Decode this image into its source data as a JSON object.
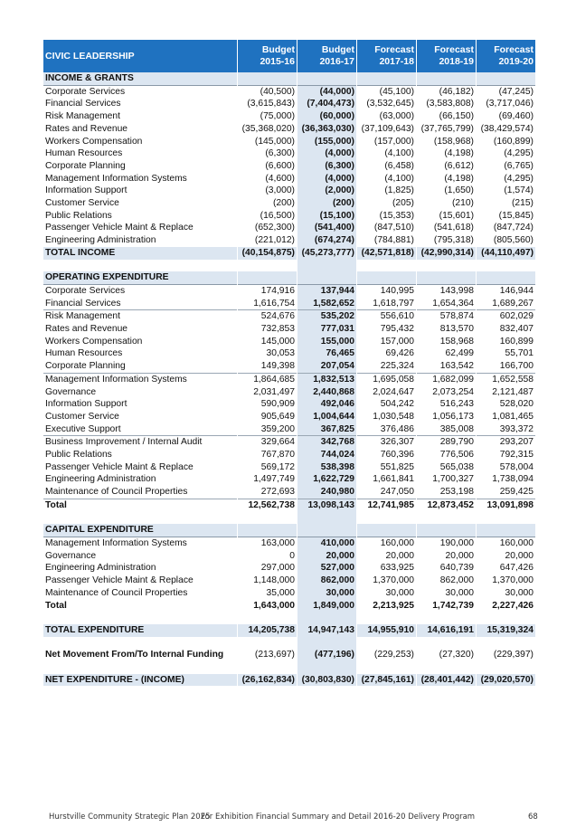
{
  "table": {
    "title": "CIVIC LEADERSHIP",
    "columns": [
      {
        "line1": "Budget",
        "line2": "2015-16"
      },
      {
        "line1": "Budget",
        "line2": "2016-17"
      },
      {
        "line1": "Forecast",
        "line2": "2017-18"
      },
      {
        "line1": "Forecast",
        "line2": "2018-19"
      },
      {
        "line1": "Forecast",
        "line2": "2019-20"
      }
    ],
    "rows": [
      {
        "type": "section",
        "label": "INCOME & GRANTS",
        "values": [
          "",
          "",
          "",
          "",
          ""
        ]
      },
      {
        "type": "row",
        "label": "Corporate Services",
        "values": [
          "(40,500)",
          "(44,000)",
          "(45,100)",
          "(46,182)",
          "(47,245)"
        ]
      },
      {
        "type": "row",
        "label": "Financial Services",
        "values": [
          "(3,615,843)",
          "(7,404,473)",
          "(3,532,645)",
          "(3,583,808)",
          "(3,717,046)"
        ]
      },
      {
        "type": "row",
        "label": "Risk Management",
        "values": [
          "(75,000)",
          "(60,000)",
          "(63,000)",
          "(66,150)",
          "(69,460)"
        ]
      },
      {
        "type": "row",
        "label": "Rates and Revenue",
        "values": [
          "(35,368,020)",
          "(36,363,030)",
          "(37,109,643)",
          "(37,765,799)",
          "(38,429,574)"
        ]
      },
      {
        "type": "row",
        "label": "Workers Compensation",
        "values": [
          "(145,000)",
          "(155,000)",
          "(157,000)",
          "(158,968)",
          "(160,899)"
        ]
      },
      {
        "type": "row",
        "label": "Human Resources",
        "values": [
          "(6,300)",
          "(4,000)",
          "(4,100)",
          "(4,198)",
          "(4,295)"
        ]
      },
      {
        "type": "row",
        "label": "Corporate Planning",
        "values": [
          "(6,600)",
          "(6,300)",
          "(6,458)",
          "(6,612)",
          "(6,765)"
        ]
      },
      {
        "type": "row",
        "label": "Management Information Systems",
        "values": [
          "(4,600)",
          "(4,000)",
          "(4,100)",
          "(4,198)",
          "(4,295)"
        ]
      },
      {
        "type": "row",
        "label": "Information Support",
        "values": [
          "(3,000)",
          "(2,000)",
          "(1,825)",
          "(1,650)",
          "(1,574)"
        ]
      },
      {
        "type": "row",
        "label": "Customer Service",
        "values": [
          "(200)",
          "(200)",
          "(205)",
          "(210)",
          "(215)"
        ]
      },
      {
        "type": "row",
        "label": "Public Relations",
        "values": [
          "(16,500)",
          "(15,100)",
          "(15,353)",
          "(15,601)",
          "(15,845)"
        ]
      },
      {
        "type": "row",
        "label": "Passenger Vehicle Maint & Replace",
        "values": [
          "(652,300)",
          "(541,400)",
          "(847,510)",
          "(541,618)",
          "(847,724)"
        ]
      },
      {
        "type": "row",
        "label": "Engineering Administration",
        "values": [
          "(221,012)",
          "(674,274)",
          "(784,881)",
          "(795,318)",
          "(805,560)"
        ]
      },
      {
        "type": "band",
        "label": "TOTAL INCOME",
        "values": [
          "(40,154,875)",
          "(45,273,777)",
          "(42,571,818)",
          "(42,990,314)",
          "(44,110,497)"
        ]
      },
      {
        "type": "blank",
        "label": "",
        "values": [
          "",
          "",
          "",
          "",
          ""
        ]
      },
      {
        "type": "section",
        "label": "OPERATING EXPENDITURE",
        "values": [
          "",
          "",
          "",
          "",
          ""
        ]
      },
      {
        "type": "row",
        "label": "Corporate Services",
        "values": [
          "174,916",
          "137,944",
          "140,995",
          "143,998",
          "146,944"
        ]
      },
      {
        "type": "row",
        "label": "Financial Services",
        "values": [
          "1,616,754",
          "1,582,652",
          "1,618,797",
          "1,654,364",
          "1,689,267"
        ]
      },
      {
        "type": "rule",
        "label": "Risk Management",
        "values": [
          "524,676",
          "535,202",
          "556,610",
          "578,874",
          "602,029"
        ]
      },
      {
        "type": "row",
        "label": "Rates and Revenue",
        "values": [
          "732,853",
          "777,031",
          "795,432",
          "813,570",
          "832,407"
        ]
      },
      {
        "type": "row",
        "label": "Workers Compensation",
        "values": [
          "145,000",
          "155,000",
          "157,000",
          "158,968",
          "160,899"
        ]
      },
      {
        "type": "row",
        "label": "Human Resources",
        "values": [
          "30,053",
          "76,465",
          "69,426",
          "62,499",
          "55,701"
        ]
      },
      {
        "type": "row",
        "label": "Corporate Planning",
        "values": [
          "149,398",
          "207,054",
          "225,324",
          "163,542",
          "166,700"
        ]
      },
      {
        "type": "rule",
        "label": "Management Information Systems",
        "values": [
          "1,864,685",
          "1,832,513",
          "1,695,058",
          "1,682,099",
          "1,652,558"
        ]
      },
      {
        "type": "row",
        "label": "Governance",
        "values": [
          "2,031,497",
          "2,440,868",
          "2,024,647",
          "2,073,254",
          "2,121,487"
        ]
      },
      {
        "type": "row",
        "label": "Information Support",
        "values": [
          "590,909",
          "492,046",
          "504,242",
          "516,243",
          "528,020"
        ]
      },
      {
        "type": "row",
        "label": "Customer Service",
        "values": [
          "905,649",
          "1,004,644",
          "1,030,548",
          "1,056,173",
          "1,081,465"
        ]
      },
      {
        "type": "row",
        "label": "Executive Support",
        "values": [
          "359,200",
          "367,825",
          "376,486",
          "385,008",
          "393,372"
        ]
      },
      {
        "type": "rule",
        "label": "Business Improvement / Internal Audit",
        "values": [
          "329,664",
          "342,768",
          "326,307",
          "289,790",
          "293,207"
        ]
      },
      {
        "type": "row",
        "label": "Public Relations",
        "values": [
          "767,870",
          "744,024",
          "760,396",
          "776,506",
          "792,315"
        ]
      },
      {
        "type": "row",
        "label": "Passenger Vehicle Maint & Replace",
        "values": [
          "569,172",
          "538,398",
          "551,825",
          "565,038",
          "578,004"
        ]
      },
      {
        "type": "row",
        "label": "Engineering Administration",
        "values": [
          "1,497,749",
          "1,622,729",
          "1,661,841",
          "1,700,327",
          "1,738,094"
        ]
      },
      {
        "type": "row",
        "label": "Maintenance of Council Properties",
        "values": [
          "272,693",
          "240,980",
          "247,050",
          "253,198",
          "259,425"
        ]
      },
      {
        "type": "total",
        "label": "Total",
        "values": [
          "12,562,738",
          "13,098,143",
          "12,741,985",
          "12,873,452",
          "13,091,898"
        ]
      },
      {
        "type": "blank",
        "label": "",
        "values": [
          "",
          "",
          "",
          "",
          ""
        ]
      },
      {
        "type": "section",
        "label": "CAPITAL EXPENDITURE",
        "values": [
          "",
          "",
          "",
          "",
          ""
        ]
      },
      {
        "type": "row",
        "label": "Management Information Systems",
        "values": [
          "163,000",
          "410,000",
          "160,000",
          "190,000",
          "160,000"
        ]
      },
      {
        "type": "row",
        "label": "Governance",
        "values": [
          "0",
          "20,000",
          "20,000",
          "20,000",
          "20,000"
        ]
      },
      {
        "type": "row",
        "label": "Engineering Administration",
        "values": [
          "297,000",
          "527,000",
          "633,925",
          "640,739",
          "647,426"
        ]
      },
      {
        "type": "row",
        "label": "Passenger Vehicle Maint & Replace",
        "values": [
          "1,148,000",
          "862,000",
          "1,370,000",
          "862,000",
          "1,370,000"
        ]
      },
      {
        "type": "row",
        "label": "Maintenance of Council Properties",
        "values": [
          "35,000",
          "30,000",
          "30,000",
          "30,000",
          "30,000"
        ]
      },
      {
        "type": "bold",
        "label": "Total",
        "values": [
          "1,643,000",
          "1,849,000",
          "2,213,925",
          "1,742,739",
          "2,227,426"
        ]
      },
      {
        "type": "blank",
        "label": "",
        "values": [
          "",
          "",
          "",
          "",
          ""
        ]
      },
      {
        "type": "band",
        "label": "TOTAL EXPENDITURE",
        "values": [
          "14,205,738",
          "14,947,143",
          "14,955,910",
          "14,616,191",
          "15,319,324"
        ]
      },
      {
        "type": "blank",
        "label": "",
        "values": [
          "",
          "",
          "",
          "",
          ""
        ]
      },
      {
        "type": "labelbold",
        "label": "Net Movement From/To Internal Funding",
        "values": [
          "(213,697)",
          "(477,196)",
          "(229,253)",
          "(27,320)",
          "(229,397)"
        ]
      },
      {
        "type": "blank",
        "label": "",
        "values": [
          "",
          "",
          "",
          "",
          ""
        ]
      },
      {
        "type": "band",
        "label": "NET EXPENDITURE - (INCOME)",
        "values": [
          "(26,162,834)",
          "(30,803,830)",
          "(27,845,161)",
          "(28,401,442)",
          "(29,020,570)"
        ]
      }
    ]
  },
  "footer": {
    "left": "Hurstville Community Strategic Plan 2025",
    "middle": "For Exhibition Financial Summary and Detail 2016-20 Delivery Program",
    "page": "68"
  },
  "colors": {
    "header": "#1f72c0",
    "band": "#dce6f1"
  }
}
